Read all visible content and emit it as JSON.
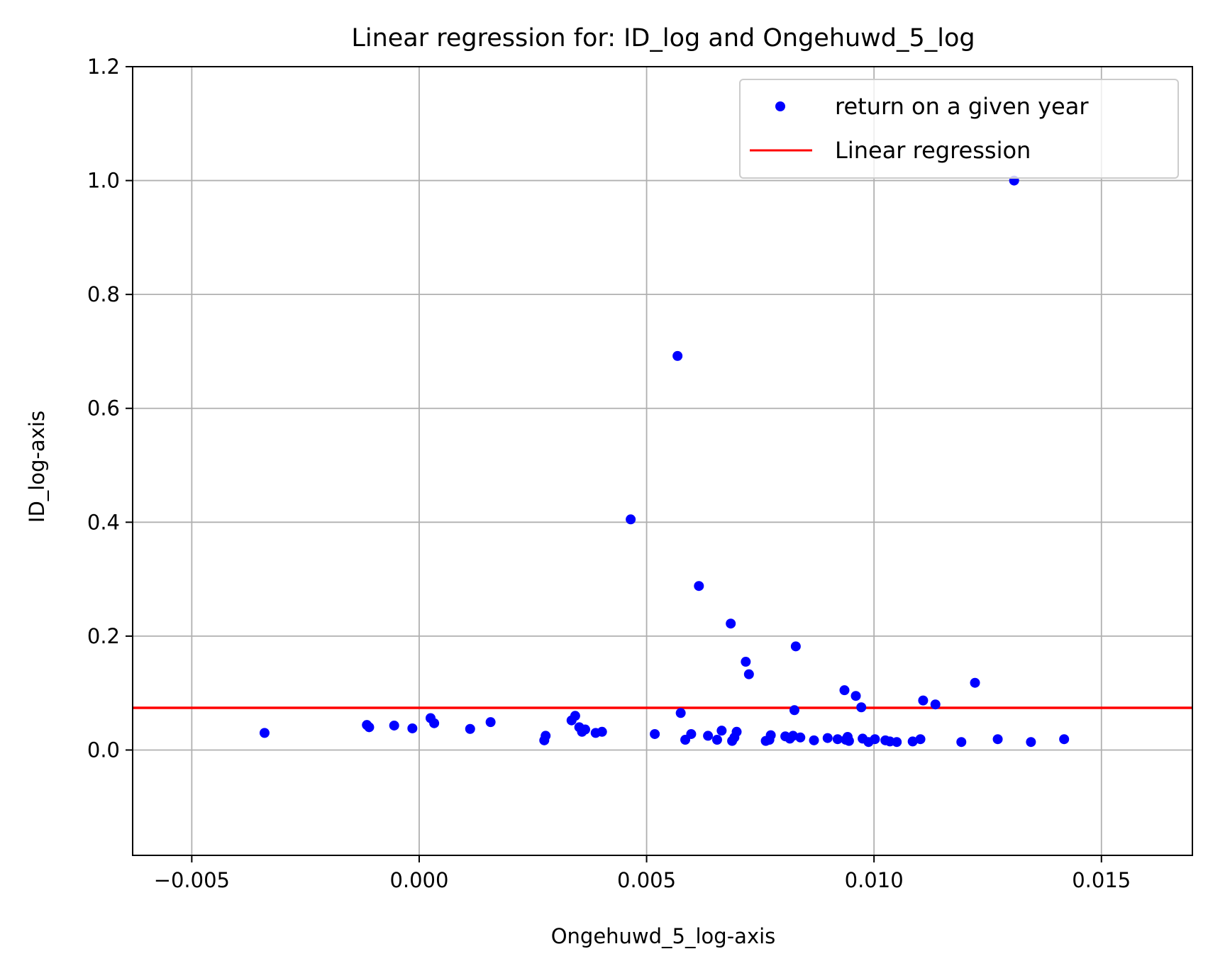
{
  "chart_data": {
    "type": "scatter",
    "title": "Linear regression for: ID_log and Ongehuwd_5_log",
    "xlabel": "Ongehuwd_5_log-axis",
    "ylabel": "ID_log-axis",
    "xlim": [
      -0.0063,
      0.017
    ],
    "ylim": [
      -0.185,
      1.2
    ],
    "xticks": [
      -0.005,
      0.0,
      0.005,
      0.01,
      0.015
    ],
    "xtick_labels": [
      "−0.005",
      "0.000",
      "0.005",
      "0.010",
      "0.015"
    ],
    "yticks": [
      0.0,
      0.2,
      0.4,
      0.6,
      0.8,
      1.0,
      1.2
    ],
    "ytick_labels": [
      "0.0",
      "0.2",
      "0.4",
      "0.6",
      "0.8",
      "1.0",
      "1.2"
    ],
    "grid": true,
    "legend_position": "top-right",
    "colors": {
      "points": "#0000ff",
      "regression": "#ff0000",
      "grid": "#b0b0b0"
    },
    "series": [
      {
        "name": "return on a given year",
        "kind": "scatter",
        "points": [
          [
            -0.0034,
            0.03
          ],
          [
            -0.00115,
            0.044
          ],
          [
            -0.0011,
            0.04
          ],
          [
            -0.00055,
            0.043
          ],
          [
            -0.00015,
            0.038
          ],
          [
            0.00025,
            0.056
          ],
          [
            0.00033,
            0.047
          ],
          [
            0.00112,
            0.037
          ],
          [
            0.00157,
            0.049
          ],
          [
            0.00275,
            0.017
          ],
          [
            0.00278,
            0.025
          ],
          [
            0.00335,
            0.052
          ],
          [
            0.00343,
            0.06
          ],
          [
            0.00352,
            0.04
          ],
          [
            0.00358,
            0.032
          ],
          [
            0.00365,
            0.036
          ],
          [
            0.00388,
            0.03
          ],
          [
            0.00402,
            0.032
          ],
          [
            0.00465,
            0.405
          ],
          [
            0.00518,
            0.028
          ],
          [
            0.00568,
            0.692
          ],
          [
            0.00575,
            0.065
          ],
          [
            0.00585,
            0.018
          ],
          [
            0.00598,
            0.028
          ],
          [
            0.00615,
            0.288
          ],
          [
            0.00635,
            0.025
          ],
          [
            0.00655,
            0.018
          ],
          [
            0.00665,
            0.034
          ],
          [
            0.00685,
            0.222
          ],
          [
            0.00688,
            0.016
          ],
          [
            0.00693,
            0.022
          ],
          [
            0.00698,
            0.032
          ],
          [
            0.00718,
            0.155
          ],
          [
            0.00725,
            0.133
          ],
          [
            0.00762,
            0.016
          ],
          [
            0.0077,
            0.018
          ],
          [
            0.00773,
            0.026
          ],
          [
            0.00805,
            0.024
          ],
          [
            0.00815,
            0.02
          ],
          [
            0.00822,
            0.025
          ],
          [
            0.00825,
            0.07
          ],
          [
            0.00828,
            0.182
          ],
          [
            0.00838,
            0.022
          ],
          [
            0.00868,
            0.017
          ],
          [
            0.00898,
            0.021
          ],
          [
            0.0092,
            0.019
          ],
          [
            0.00935,
            0.105
          ],
          [
            0.00938,
            0.018
          ],
          [
            0.00942,
            0.023
          ],
          [
            0.00945,
            0.016
          ],
          [
            0.0096,
            0.095
          ],
          [
            0.00972,
            0.075
          ],
          [
            0.00975,
            0.02
          ],
          [
            0.00988,
            0.014
          ],
          [
            0.01002,
            0.019
          ],
          [
            0.01025,
            0.017
          ],
          [
            0.01035,
            0.015
          ],
          [
            0.0105,
            0.014
          ],
          [
            0.01085,
            0.015
          ],
          [
            0.01102,
            0.019
          ],
          [
            0.01108,
            0.087
          ],
          [
            0.01135,
            0.08
          ],
          [
            0.01192,
            0.014
          ],
          [
            0.01222,
            0.118
          ],
          [
            0.01272,
            0.019
          ],
          [
            0.01308,
            1.0
          ],
          [
            0.01345,
            0.014
          ],
          [
            0.01418,
            0.019
          ]
        ]
      },
      {
        "name": "Linear regression",
        "kind": "line",
        "points": [
          [
            -0.0063,
            0.074
          ],
          [
            0.017,
            0.074
          ]
        ]
      }
    ]
  }
}
